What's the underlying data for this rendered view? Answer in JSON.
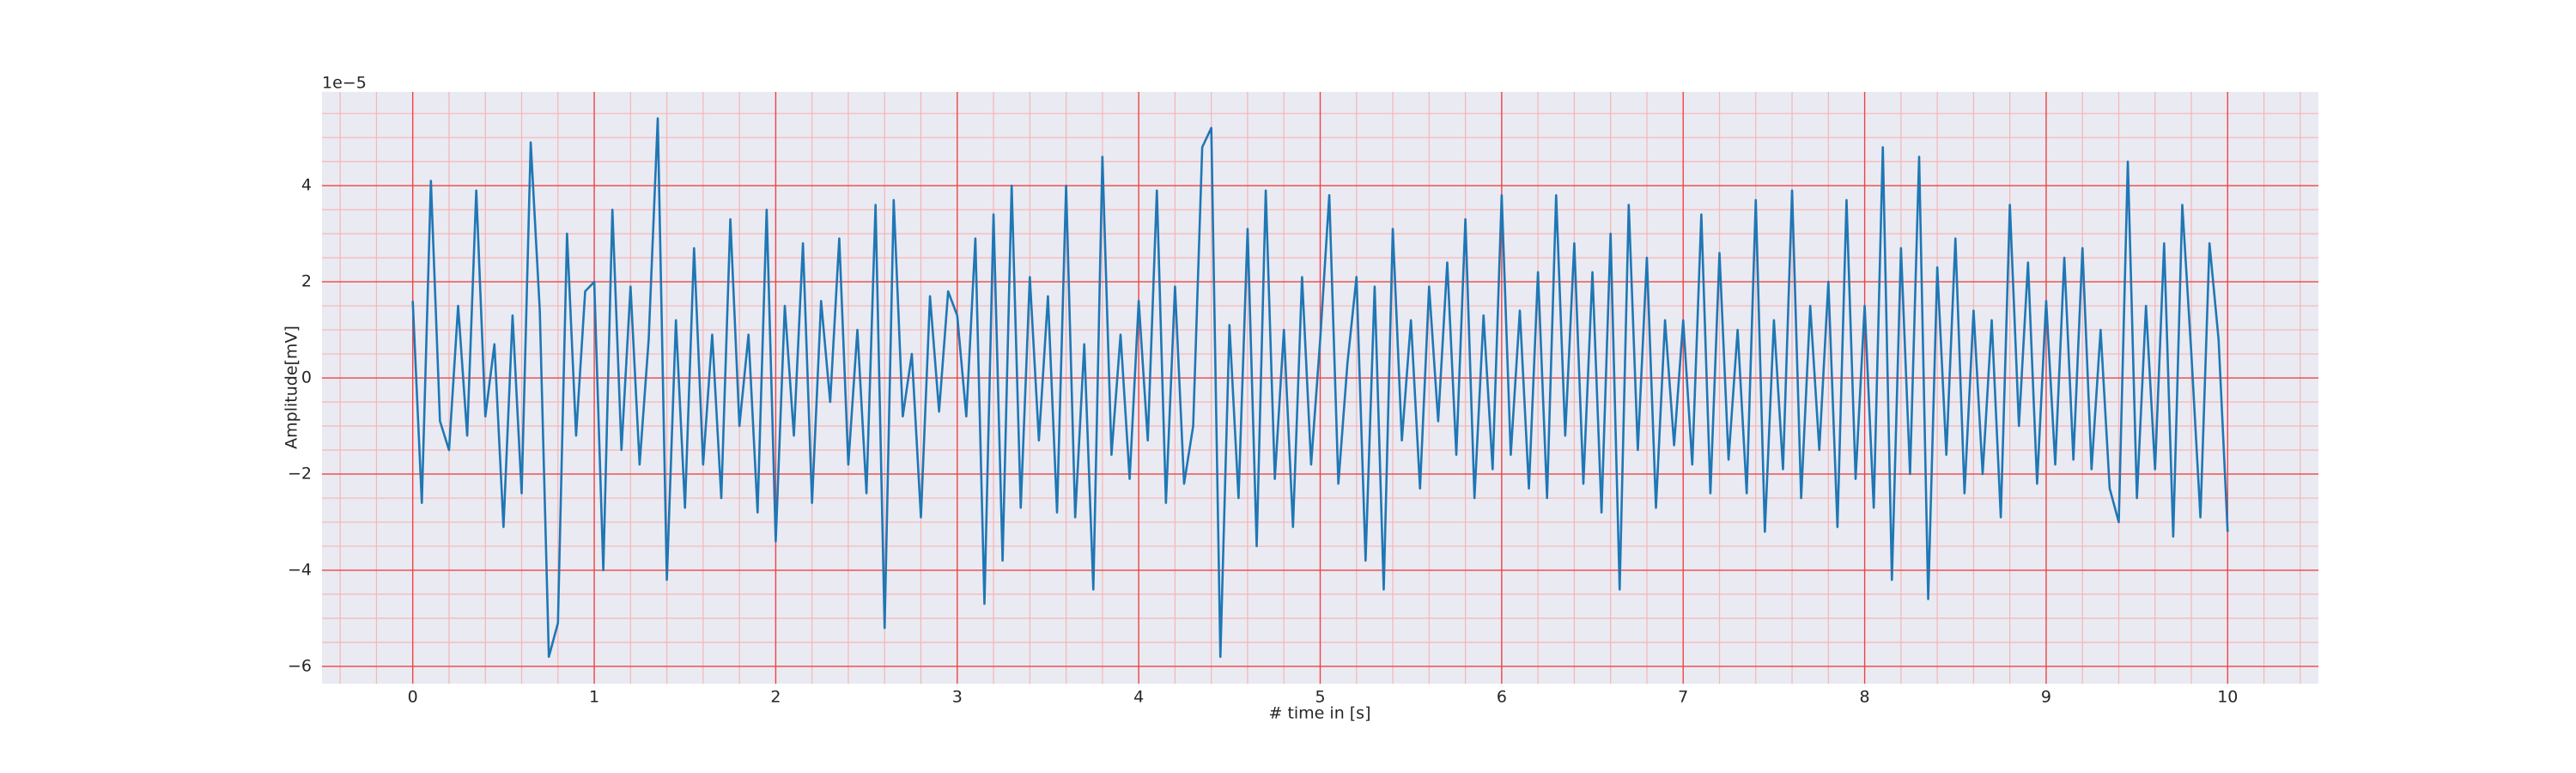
{
  "chart_data": {
    "type": "line",
    "xlabel": "# time in [s]",
    "ylabel": "Amplitude[mV]",
    "y_offset_text": "1e−5",
    "color": "#1f77b4",
    "grid": true,
    "xlim": [
      -0.5,
      10.5
    ],
    "ylim": [
      -6.36,
      5.95
    ],
    "xticks": [
      0,
      1,
      2,
      3,
      4,
      5,
      6,
      7,
      8,
      9,
      10
    ],
    "yticks": [
      {
        "value": -6,
        "label": "−6"
      },
      {
        "value": -4,
        "label": "−4"
      },
      {
        "value": -2,
        "label": "−2"
      },
      0,
      2,
      4
    ],
    "xminorticks": [
      -0.4,
      -0.2,
      0.2,
      0.4,
      0.6,
      0.8,
      1.2,
      1.4,
      1.6,
      1.8,
      2.2,
      2.4,
      2.6,
      2.8,
      3.2,
      3.4,
      3.6,
      3.8,
      4.2,
      4.4,
      4.6,
      4.8,
      5.2,
      5.4,
      5.6,
      5.8,
      6.2,
      6.4,
      6.6,
      6.8,
      7.2,
      7.4,
      7.6,
      7.8,
      8.2,
      8.4,
      8.6,
      8.8,
      9.2,
      9.4,
      9.6,
      9.8,
      10.2,
      10.4
    ],
    "yminorticks": [
      -5.5,
      -5,
      -4.5,
      -3.5,
      -3,
      -2.5,
      -1.5,
      -1,
      -0.5,
      0.5,
      1,
      1.5,
      2.5,
      3,
      3.5,
      4.5,
      5,
      5.5
    ],
    "x": [
      0,
      0.05,
      0.1,
      0.15,
      0.2,
      0.25,
      0.3,
      0.35,
      0.4,
      0.45,
      0.5,
      0.55,
      0.6,
      0.65,
      0.7,
      0.75,
      0.8,
      0.85,
      0.9,
      0.95,
      1,
      1.05,
      1.1,
      1.15,
      1.2,
      1.25,
      1.3,
      1.35,
      1.4,
      1.45,
      1.5,
      1.55,
      1.6,
      1.65,
      1.7,
      1.75,
      1.8,
      1.85,
      1.9,
      1.95,
      2,
      2.05,
      2.1,
      2.15,
      2.2,
      2.25,
      2.3,
      2.35,
      2.4,
      2.45,
      2.5,
      2.55,
      2.6,
      2.65,
      2.7,
      2.75,
      2.8,
      2.85,
      2.9,
      2.95,
      3,
      3.05,
      3.1,
      3.15,
      3.2,
      3.25,
      3.3,
      3.35,
      3.4,
      3.45,
      3.5,
      3.55,
      3.6,
      3.65,
      3.7,
      3.75,
      3.8,
      3.85,
      3.9,
      3.95,
      4,
      4.05,
      4.1,
      4.15,
      4.2,
      4.25,
      4.3,
      4.35,
      4.4,
      4.45,
      4.5,
      4.55,
      4.6,
      4.65,
      4.7,
      4.75,
      4.8,
      4.85,
      4.9,
      4.95,
      5,
      5.05,
      5.1,
      5.15,
      5.2,
      5.25,
      5.3,
      5.35,
      5.4,
      5.45,
      5.5,
      5.55,
      5.6,
      5.65,
      5.7,
      5.75,
      5.8,
      5.85,
      5.9,
      5.95,
      6,
      6.05,
      6.1,
      6.15,
      6.2,
      6.25,
      6.3,
      6.35,
      6.4,
      6.45,
      6.5,
      6.55,
      6.6,
      6.65,
      6.7,
      6.75,
      6.8,
      6.85,
      6.9,
      6.95,
      7,
      7.05,
      7.1,
      7.15,
      7.2,
      7.25,
      7.3,
      7.35,
      7.4,
      7.45,
      7.5,
      7.55,
      7.6,
      7.65,
      7.7,
      7.75,
      7.8,
      7.85,
      7.9,
      7.95,
      8,
      8.05,
      8.1,
      8.15,
      8.2,
      8.25,
      8.3,
      8.35,
      8.4,
      8.45,
      8.5,
      8.55,
      8.6,
      8.65,
      8.7,
      8.75,
      8.8,
      8.85,
      8.9,
      8.95,
      9,
      9.05,
      9.1,
      9.15,
      9.2,
      9.25,
      9.3,
      9.35,
      9.4,
      9.45,
      9.5,
      9.55,
      9.6,
      9.65,
      9.7,
      9.75,
      9.8,
      9.85,
      9.9,
      9.95,
      10
    ],
    "values": [
      1.6,
      -2.6,
      4.1,
      -0.9,
      -1.5,
      1.5,
      -1.2,
      3.9,
      -0.8,
      0.7,
      -3.1,
      1.3,
      -2.4,
      4.9,
      1.4,
      -5.8,
      -5.1,
      3.0,
      -1.2,
      1.8,
      2.0,
      -4.0,
      3.5,
      -1.5,
      1.9,
      -1.8,
      0.8,
      5.4,
      -4.2,
      1.2,
      -2.7,
      2.7,
      -1.8,
      0.9,
      -2.5,
      3.3,
      -1.0,
      0.9,
      -2.8,
      3.5,
      -3.4,
      1.5,
      -1.2,
      2.8,
      -2.6,
      1.6,
      -0.5,
      2.9,
      -1.8,
      1.0,
      -2.4,
      3.6,
      -5.2,
      3.7,
      -0.8,
      0.5,
      -2.9,
      1.7,
      -0.7,
      1.8,
      1.3,
      -0.8,
      2.9,
      -4.7,
      3.4,
      -3.8,
      4.0,
      -2.7,
      2.1,
      -1.3,
      1.7,
      -2.8,
      4.0,
      -2.9,
      0.7,
      -4.4,
      4.6,
      -1.6,
      0.9,
      -2.1,
      1.6,
      -1.3,
      3.9,
      -2.6,
      1.9,
      -2.2,
      -1.0,
      4.8,
      5.2,
      -5.8,
      1.1,
      -2.5,
      3.1,
      -3.5,
      3.9,
      -2.1,
      1.0,
      -3.1,
      2.1,
      -1.8,
      0.8,
      3.8,
      -2.2,
      0.3,
      2.1,
      -3.8,
      1.9,
      -4.4,
      3.1,
      -1.3,
      1.2,
      -2.3,
      1.9,
      -0.9,
      2.4,
      -1.6,
      3.3,
      -2.5,
      1.3,
      -1.9,
      3.8,
      -1.6,
      1.4,
      -2.3,
      2.2,
      -2.5,
      3.8,
      -1.2,
      2.8,
      -2.2,
      2.2,
      -2.8,
      3.0,
      -4.4,
      3.6,
      -1.5,
      2.5,
      -2.7,
      1.2,
      -1.4,
      1.2,
      -1.8,
      3.4,
      -2.4,
      2.6,
      -1.7,
      1.0,
      -2.4,
      3.7,
      -3.2,
      1.2,
      -1.9,
      3.9,
      -2.5,
      1.5,
      -1.5,
      2.0,
      -3.1,
      3.7,
      -2.1,
      1.5,
      -2.7,
      4.8,
      -4.2,
      2.7,
      -2.0,
      4.6,
      -4.6,
      2.3,
      -1.6,
      2.9,
      -2.4,
      1.4,
      -2.0,
      1.2,
      -2.9,
      3.6,
      -1.0,
      2.4,
      -2.2,
      1.6,
      -1.8,
      2.5,
      -1.7,
      2.7,
      -1.9,
      1.0,
      -2.3,
      -3.0,
      4.5,
      -2.5,
      1.5,
      -1.9,
      2.8,
      -3.3,
      3.6,
      0.5,
      -2.9,
      2.8,
      0.8,
      -3.2
    ]
  }
}
